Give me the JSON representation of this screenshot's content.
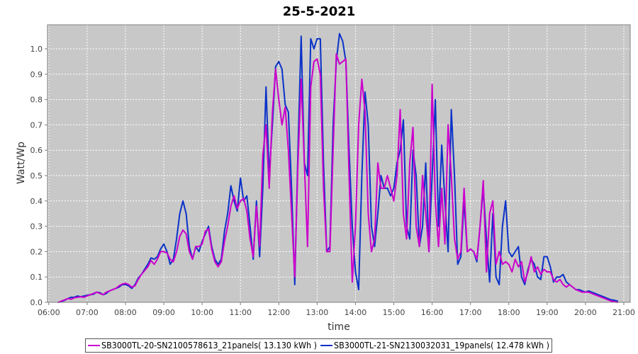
{
  "chart_data": {
    "type": "line",
    "title": "25-5-2021",
    "xlabel": "time",
    "ylabel": "Watt/Wp",
    "xlim": [
      "05:58",
      "21:10"
    ],
    "ylim": [
      0,
      1.095
    ],
    "grid": true,
    "legend_position": "bottom",
    "x_ticks": [
      "06:00",
      "07:00",
      "08:00",
      "09:00",
      "10:00",
      "11:00",
      "12:00",
      "13:00",
      "14:00",
      "15:00",
      "16:00",
      "17:00",
      "18:00",
      "19:00",
      "20:00",
      "21:00"
    ],
    "y_ticks": [
      "0.0",
      "0.1",
      "0.2",
      "0.3",
      "0.4",
      "0.5",
      "0.6",
      "0.7",
      "0.8",
      "0.9",
      "1.0"
    ],
    "x": [
      "06:15",
      "06:20",
      "06:25",
      "06:30",
      "06:35",
      "06:40",
      "06:45",
      "06:50",
      "06:55",
      "07:00",
      "07:05",
      "07:10",
      "07:15",
      "07:20",
      "07:25",
      "07:30",
      "07:35",
      "07:40",
      "07:45",
      "07:50",
      "07:55",
      "08:00",
      "08:05",
      "08:10",
      "08:15",
      "08:20",
      "08:25",
      "08:30",
      "08:35",
      "08:40",
      "08:45",
      "08:50",
      "08:55",
      "09:00",
      "09:05",
      "09:10",
      "09:15",
      "09:20",
      "09:25",
      "09:30",
      "09:35",
      "09:40",
      "09:45",
      "09:50",
      "09:55",
      "10:00",
      "10:05",
      "10:10",
      "10:15",
      "10:20",
      "10:25",
      "10:30",
      "10:35",
      "10:40",
      "10:45",
      "10:50",
      "10:55",
      "11:00",
      "11:05",
      "11:10",
      "11:15",
      "11:20",
      "11:25",
      "11:30",
      "11:35",
      "11:40",
      "11:45",
      "11:50",
      "11:55",
      "12:00",
      "12:05",
      "12:10",
      "12:15",
      "12:20",
      "12:25",
      "12:30",
      "12:35",
      "12:40",
      "12:45",
      "12:50",
      "12:55",
      "13:00",
      "13:05",
      "13:10",
      "13:15",
      "13:20",
      "13:25",
      "13:30",
      "13:35",
      "13:40",
      "13:45",
      "13:50",
      "13:55",
      "14:00",
      "14:05",
      "14:10",
      "14:15",
      "14:20",
      "14:25",
      "14:30",
      "14:35",
      "14:40",
      "14:45",
      "14:50",
      "14:55",
      "15:00",
      "15:05",
      "15:10",
      "15:15",
      "15:20",
      "15:25",
      "15:30",
      "15:35",
      "15:40",
      "15:45",
      "15:50",
      "15:55",
      "16:00",
      "16:05",
      "16:10",
      "16:15",
      "16:20",
      "16:25",
      "16:30",
      "16:35",
      "16:40",
      "16:45",
      "16:50",
      "16:55",
      "17:00",
      "17:05",
      "17:10",
      "17:15",
      "17:20",
      "17:25",
      "17:30",
      "17:35",
      "17:40",
      "17:45",
      "17:50",
      "17:55",
      "18:00",
      "18:05",
      "18:10",
      "18:15",
      "18:20",
      "18:25",
      "18:30",
      "18:35",
      "18:40",
      "18:45",
      "18:50",
      "18:55",
      "19:00",
      "19:05",
      "19:10",
      "19:15",
      "19:20",
      "19:25",
      "19:30",
      "19:35",
      "19:40",
      "19:45",
      "19:50",
      "19:55",
      "20:00",
      "20:05",
      "20:10",
      "20:15",
      "20:20",
      "20:25",
      "20:30",
      "20:35",
      "20:40",
      "20:45",
      "20:50"
    ],
    "series": [
      {
        "name": "SB3000TL-20-SN2100578613_21panels( 13.130 kWh )",
        "color": "#cc00cc",
        "values": [
          0,
          0.005,
          0.01,
          0.015,
          0.012,
          0.018,
          0.02,
          0.022,
          0.02,
          0.025,
          0.03,
          0.035,
          0.04,
          0.035,
          0.03,
          0.04,
          0.045,
          0.05,
          0.055,
          0.065,
          0.072,
          0.075,
          0.07,
          0.06,
          0.065,
          0.09,
          0.11,
          0.125,
          0.14,
          0.165,
          0.15,
          0.17,
          0.2,
          0.2,
          0.195,
          0.17,
          0.16,
          0.2,
          0.26,
          0.285,
          0.27,
          0.2,
          0.17,
          0.22,
          0.22,
          0.23,
          0.28,
          0.29,
          0.21,
          0.16,
          0.14,
          0.16,
          0.24,
          0.3,
          0.38,
          0.42,
          0.37,
          0.4,
          0.41,
          0.36,
          0.25,
          0.18,
          0.38,
          0.22,
          0.58,
          0.7,
          0.45,
          0.75,
          0.92,
          0.8,
          0.7,
          0.77,
          0.6,
          0.35,
          0.1,
          0.55,
          0.88,
          0.55,
          0.22,
          0.85,
          0.95,
          0.96,
          0.9,
          0.45,
          0.2,
          0.2,
          0.6,
          0.98,
          0.94,
          0.95,
          0.96,
          0.5,
          0.08,
          0.3,
          0.7,
          0.88,
          0.75,
          0.35,
          0.2,
          0.25,
          0.55,
          0.45,
          0.45,
          0.5,
          0.45,
          0.4,
          0.5,
          0.76,
          0.35,
          0.25,
          0.55,
          0.69,
          0.3,
          0.22,
          0.5,
          0.35,
          0.2,
          0.86,
          0.4,
          0.22,
          0.45,
          0.23,
          0.7,
          0.5,
          0.25,
          0.17,
          0.2,
          0.45,
          0.2,
          0.21,
          0.2,
          0.17,
          0.3,
          0.48,
          0.12,
          0.35,
          0.4,
          0.15,
          0.2,
          0.15,
          0.16,
          0.15,
          0.12,
          0.17,
          0.14,
          0.16,
          0.08,
          0.12,
          0.18,
          0.12,
          0.14,
          0.11,
          0.13,
          0.12,
          0.12,
          0.09,
          0.08,
          0.09,
          0.07,
          0.06,
          0.07,
          0.06,
          0.05,
          0.045,
          0.04,
          0.04,
          0.04,
          0.035,
          0.03,
          0.025,
          0.02,
          0.015,
          0.01,
          0.005,
          0.003,
          0
        ]
      },
      {
        "name": "SB3000TL-21-SN2130032031_19panels( 12.478 kWh )",
        "color": "#0a32c8",
        "values": [
          0,
          0.003,
          0.008,
          0.015,
          0.02,
          0.02,
          0.025,
          0.022,
          0.025,
          0.028,
          0.03,
          0.032,
          0.04,
          0.038,
          0.03,
          0.035,
          0.045,
          0.05,
          0.055,
          0.06,
          0.07,
          0.07,
          0.065,
          0.055,
          0.07,
          0.095,
          0.11,
          0.13,
          0.15,
          0.175,
          0.17,
          0.18,
          0.21,
          0.23,
          0.2,
          0.15,
          0.17,
          0.25,
          0.35,
          0.4,
          0.35,
          0.22,
          0.17,
          0.22,
          0.2,
          0.24,
          0.27,
          0.3,
          0.22,
          0.17,
          0.15,
          0.17,
          0.28,
          0.35,
          0.46,
          0.4,
          0.36,
          0.49,
          0.4,
          0.42,
          0.3,
          0.17,
          0.4,
          0.18,
          0.45,
          0.85,
          0.5,
          0.7,
          0.93,
          0.95,
          0.92,
          0.78,
          0.75,
          0.45,
          0.07,
          0.6,
          1.05,
          0.55,
          0.5,
          1.04,
          1.0,
          1.04,
          1.04,
          0.55,
          0.2,
          0.22,
          0.7,
          0.95,
          1.06,
          1.03,
          0.95,
          0.6,
          0.3,
          0.12,
          0.05,
          0.5,
          0.83,
          0.7,
          0.3,
          0.22,
          0.35,
          0.5,
          0.45,
          0.45,
          0.42,
          0.45,
          0.55,
          0.6,
          0.72,
          0.3,
          0.25,
          0.6,
          0.5,
          0.22,
          0.3,
          0.55,
          0.2,
          0.5,
          0.8,
          0.3,
          0.62,
          0.4,
          0.2,
          0.76,
          0.5,
          0.15,
          0.18,
          0.4,
          0.2,
          0.21,
          0.2,
          0.16,
          0.3,
          0.45,
          0.25,
          0.08,
          0.35,
          0.1,
          0.07,
          0.3,
          0.4,
          0.2,
          0.18,
          0.2,
          0.22,
          0.1,
          0.07,
          0.13,
          0.17,
          0.15,
          0.1,
          0.09,
          0.18,
          0.18,
          0.14,
          0.08,
          0.1,
          0.1,
          0.11,
          0.08,
          0.07,
          0.06,
          0.05,
          0.05,
          0.045,
          0.04,
          0.045,
          0.04,
          0.035,
          0.03,
          0.025,
          0.02,
          0.015,
          0.01,
          0.008,
          0.005
        ]
      }
    ]
  }
}
